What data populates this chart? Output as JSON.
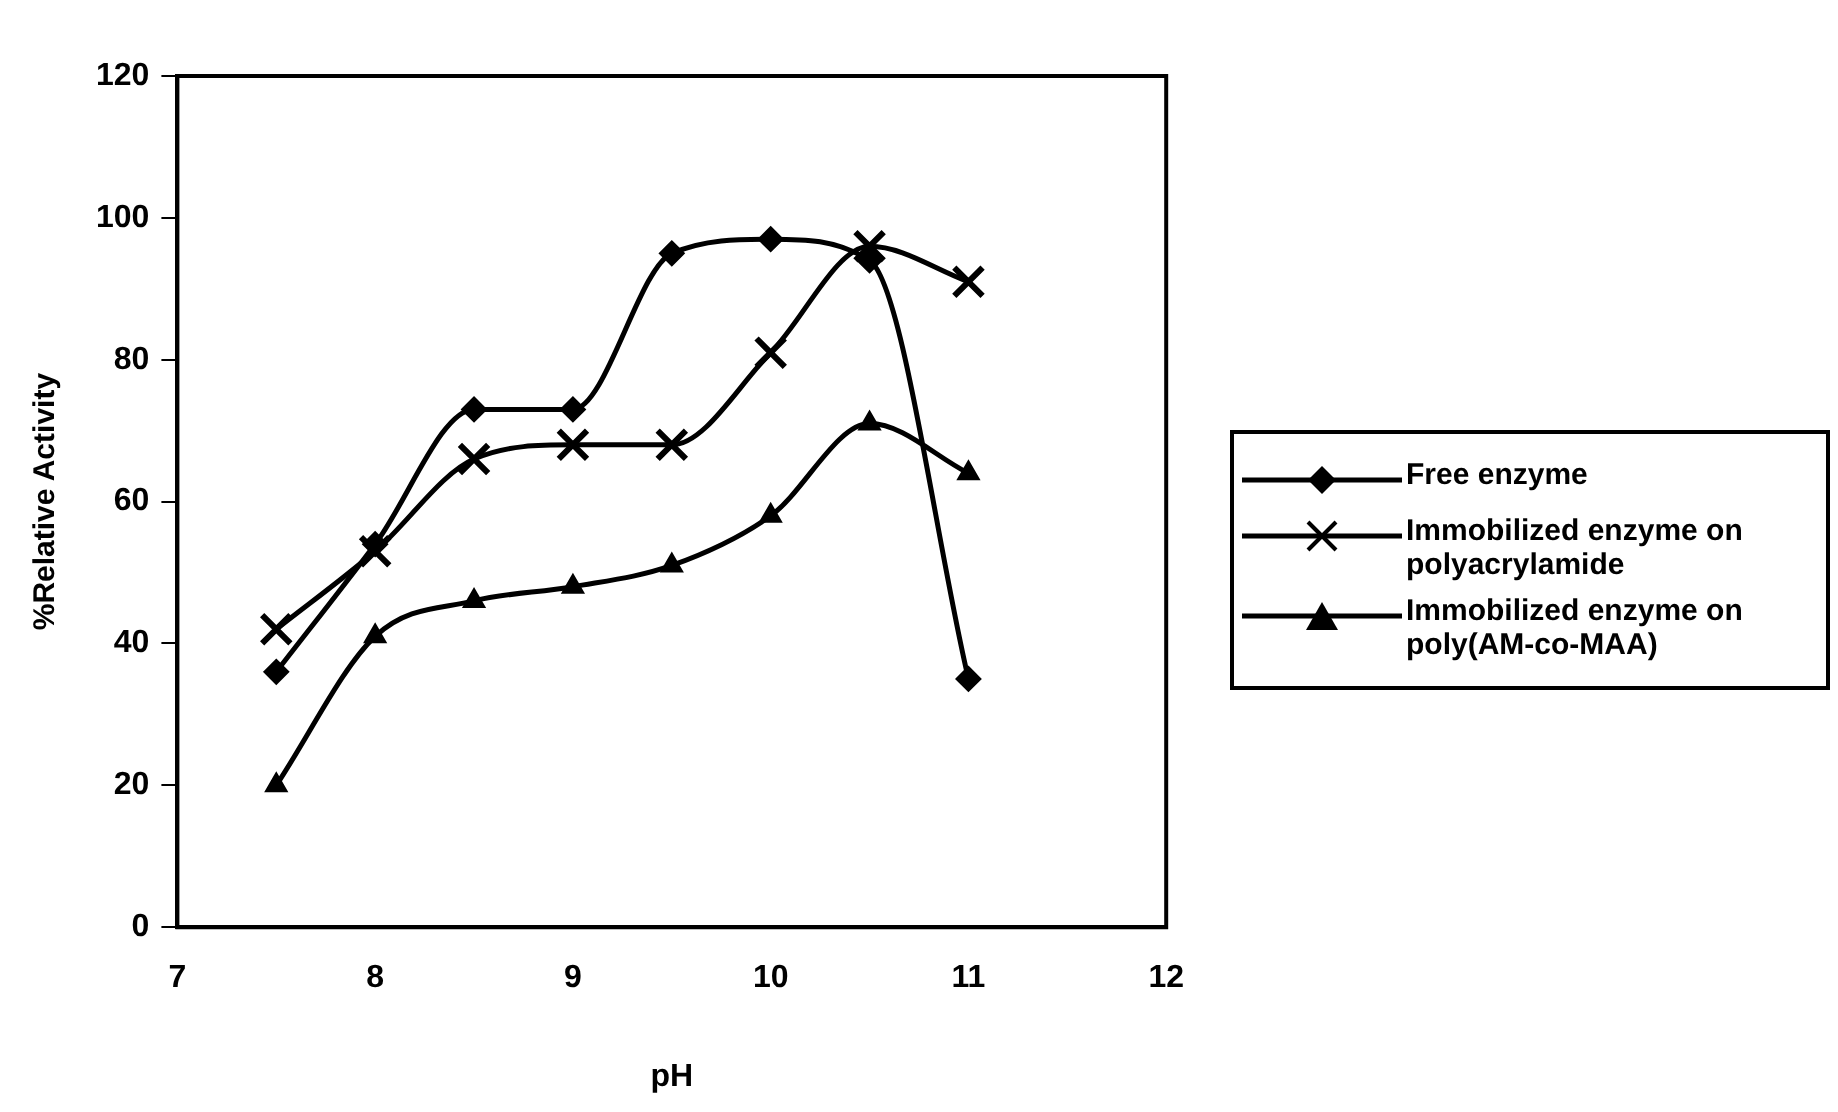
{
  "chart_data": {
    "type": "line",
    "xlabel": "pH",
    "ylabel": "%Relative Activity",
    "x": [
      7.5,
      8,
      8.5,
      9,
      9.5,
      10,
      10.5,
      11
    ],
    "xlim": [
      7,
      12
    ],
    "xticks": [
      7,
      8,
      9,
      10,
      11,
      12
    ],
    "ylim": [
      0,
      120
    ],
    "yticks": [
      0,
      20,
      40,
      60,
      80,
      100,
      120
    ],
    "grid": false,
    "legend": "right",
    "line_style": "solid",
    "series": [
      {
        "name": "Free enzyme",
        "color": "#000000",
        "marker": "diamond",
        "values": [
          36,
          54,
          73,
          73,
          95,
          97,
          94,
          35
        ]
      },
      {
        "name": "Immobilized enzyme on polyacrylamide",
        "color": "#000000",
        "marker": "cross",
        "values": [
          42,
          53,
          66,
          68,
          68,
          81,
          96,
          91
        ]
      },
      {
        "name": "Immobilized enzyme on poly(AM-co-MAA)",
        "color": "#000000",
        "marker": "triangle",
        "values": [
          20,
          41,
          46,
          48,
          51,
          58,
          71,
          64
        ]
      }
    ]
  }
}
